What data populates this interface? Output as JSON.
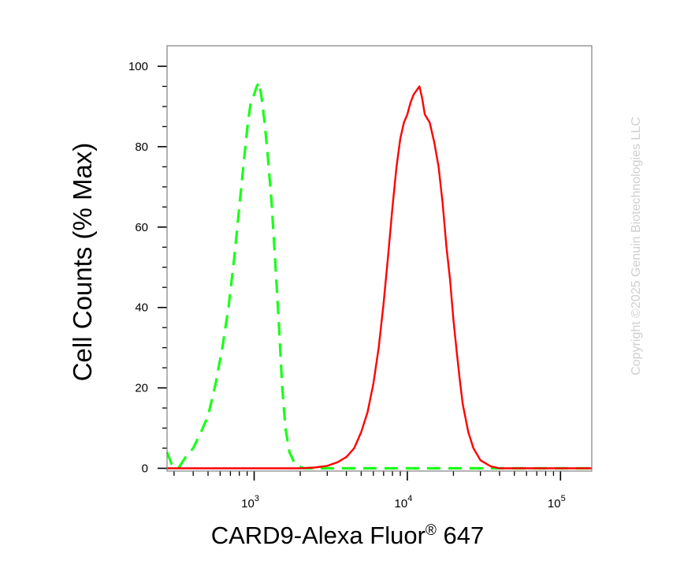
{
  "chart_data": {
    "type": "line",
    "title": "",
    "xlabel": {
      "main": "CARD9-Alexa Fluor",
      "reg": "®",
      "suffix": " 647"
    },
    "ylabel": "Cell Counts (% Max)",
    "x_scale": "log",
    "xlim": [
      270,
      160000
    ],
    "ylim": [
      0,
      100
    ],
    "grid": false,
    "legend": "none",
    "x_ticks_major": [
      {
        "value": 1000,
        "base": "10",
        "exp": "3"
      },
      {
        "value": 10000,
        "base": "10",
        "exp": "4"
      },
      {
        "value": 100000,
        "base": "10",
        "exp": "5"
      }
    ],
    "y_ticks": [
      {
        "value": 0,
        "label": "0"
      },
      {
        "value": 20,
        "label": "20"
      },
      {
        "value": 40,
        "label": "40"
      },
      {
        "value": 60,
        "label": "60"
      },
      {
        "value": 80,
        "label": "80"
      },
      {
        "value": 100,
        "label": "100"
      }
    ],
    "series": [
      {
        "color": "#19ff19",
        "style": "dashed",
        "points": [
          [
            270,
            4
          ],
          [
            290,
            1
          ],
          [
            320,
            0
          ],
          [
            360,
            3
          ],
          [
            400,
            5
          ],
          [
            450,
            9
          ],
          [
            500,
            13
          ],
          [
            560,
            21
          ],
          [
            620,
            30
          ],
          [
            680,
            40
          ],
          [
            740,
            52
          ],
          [
            800,
            65
          ],
          [
            860,
            77
          ],
          [
            910,
            86
          ],
          [
            950,
            91
          ],
          [
            1000,
            93
          ],
          [
            1040,
            95
          ],
          [
            1080,
            96
          ],
          [
            1120,
            92
          ],
          [
            1170,
            86
          ],
          [
            1220,
            79
          ],
          [
            1300,
            66
          ],
          [
            1370,
            52
          ],
          [
            1450,
            36
          ],
          [
            1520,
            21
          ],
          [
            1600,
            10
          ],
          [
            1700,
            4
          ],
          [
            1850,
            1
          ],
          [
            2100,
            0
          ],
          [
            5000,
            0
          ],
          [
            20000,
            0
          ],
          [
            160000,
            0
          ]
        ]
      },
      {
        "color": "#ff0000",
        "style": "solid",
        "points": [
          [
            270,
            0
          ],
          [
            2000,
            0
          ],
          [
            2500,
            0.2
          ],
          [
            3000,
            0.6
          ],
          [
            3500,
            1.5
          ],
          [
            4000,
            2.8
          ],
          [
            4500,
            5
          ],
          [
            5000,
            9
          ],
          [
            5500,
            14
          ],
          [
            6000,
            21
          ],
          [
            6500,
            30
          ],
          [
            7000,
            41
          ],
          [
            7500,
            53
          ],
          [
            8000,
            65
          ],
          [
            8500,
            75
          ],
          [
            9000,
            82
          ],
          [
            9500,
            86
          ],
          [
            10000,
            88
          ],
          [
            10500,
            91
          ],
          [
            11000,
            93
          ],
          [
            11500,
            94
          ],
          [
            12000,
            95
          ],
          [
            12500,
            92
          ],
          [
            13000,
            88
          ],
          [
            14000,
            86
          ],
          [
            15000,
            81
          ],
          [
            16000,
            75
          ],
          [
            17000,
            66
          ],
          [
            18000,
            55
          ],
          [
            19000,
            47
          ],
          [
            20000,
            37
          ],
          [
            21000,
            29
          ],
          [
            22000,
            22
          ],
          [
            23000,
            16
          ],
          [
            25000,
            9
          ],
          [
            27000,
            5
          ],
          [
            30000,
            2
          ],
          [
            35000,
            0.5
          ],
          [
            40000,
            0
          ],
          [
            160000,
            0
          ]
        ]
      }
    ]
  },
  "watermark": "Copyright ©2025 Genuin Biotechnologies LLC"
}
